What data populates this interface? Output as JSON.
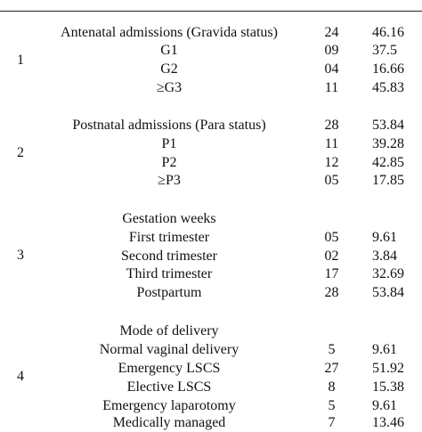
{
  "sections": [
    {
      "number": "1",
      "rows": [
        {
          "label": "Antenatal admissions (Gravida status)",
          "n": "24",
          "pct": "46.16"
        },
        {
          "label": "G1",
          "n": "09",
          "pct": "37.5"
        },
        {
          "label": "G2",
          "n": "04",
          "pct": "16.66"
        },
        {
          "label": "≥G3",
          "n": "11",
          "pct": "45.83"
        }
      ]
    },
    {
      "number": "2",
      "rows": [
        {
          "label": "Postnatal admissions (Para status)",
          "n": "28",
          "pct": "53.84"
        },
        {
          "label": "P1",
          "n": "11",
          "pct": "39.28"
        },
        {
          "label": "P2",
          "n": "12",
          "pct": "42.85"
        },
        {
          "label": "≥P3",
          "n": "05",
          "pct": "17.85"
        }
      ]
    },
    {
      "number": "3",
      "heading": "Gestation weeks",
      "rows": [
        {
          "label": "First trimester",
          "n": "05",
          "pct": "9.61"
        },
        {
          "label": "Second trimester",
          "n": "02",
          "pct": "3.84"
        },
        {
          "label": "Third trimester",
          "n": "17",
          "pct": "32.69"
        },
        {
          "label": "Postpartum",
          "n": "28",
          "pct": "53.84"
        }
      ]
    },
    {
      "number": "4",
      "heading": "Mode of delivery",
      "rows": [
        {
          "label": "Normal vaginal delivery",
          "n": "5",
          "pct": "9.61"
        },
        {
          "label": "Emergency LSCS",
          "n": "27",
          "pct": "51.92"
        },
        {
          "label": "Elective LSCS",
          "n": "8",
          "pct": "15.38"
        },
        {
          "label": "Emergency laparotomy",
          "n": "5",
          "pct": "9.61"
        },
        {
          "label": "Medically managed",
          "n": "7",
          "pct": "13.46"
        }
      ]
    }
  ]
}
